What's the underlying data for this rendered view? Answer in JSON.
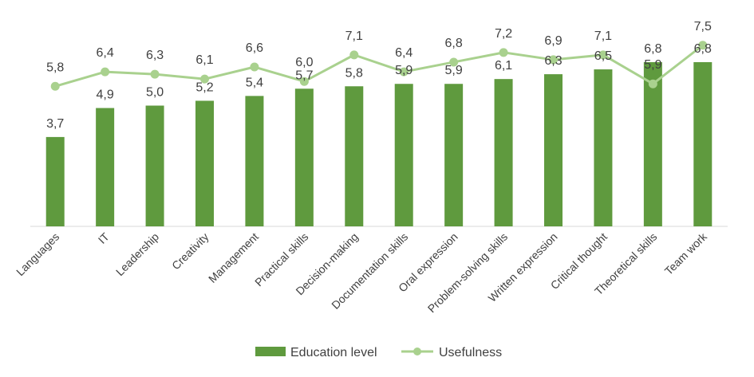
{
  "chart_data": {
    "type": "bar",
    "categories": [
      "Languages",
      "IT",
      "Leadership",
      "Creativity",
      "Management",
      "Practical skills",
      "Decision-making",
      "Documentation skills",
      "Oral expression",
      "Problem-solving skills",
      "Written expression",
      "Critical thought",
      "Theoretical skills",
      "Team work"
    ],
    "series": [
      {
        "name": "Education level",
        "type": "bar",
        "color": "#5f9a3e",
        "values": [
          3.7,
          4.9,
          5.0,
          5.2,
          5.4,
          5.7,
          5.8,
          5.9,
          5.9,
          6.1,
          6.3,
          6.5,
          6.8,
          6.8
        ],
        "labels": [
          "3,7",
          "4,9",
          "5,0",
          "5,2",
          "5,4",
          "5,7",
          "5,8",
          "5,9",
          "5,9",
          "6,1",
          "6,3",
          "6,5",
          "6,8",
          "6,8"
        ]
      },
      {
        "name": "Usefulness",
        "type": "line",
        "color": "#a9d18e",
        "values": [
          5.8,
          6.4,
          6.3,
          6.1,
          6.6,
          6.0,
          7.1,
          6.4,
          6.8,
          7.2,
          6.9,
          7.1,
          5.9,
          7.5
        ],
        "labels": [
          "5,8",
          "6,4",
          "6,3",
          "6,1",
          "6,6",
          "6,0",
          "7,1",
          "6,4",
          "6,8",
          "7,2",
          "6,9",
          "7,1",
          "5,9",
          "7,5"
        ]
      }
    ],
    "ylim": [
      0,
      8
    ],
    "title": "",
    "xlabel": "",
    "ylabel": "",
    "grid": false,
    "legend_position": "bottom"
  }
}
